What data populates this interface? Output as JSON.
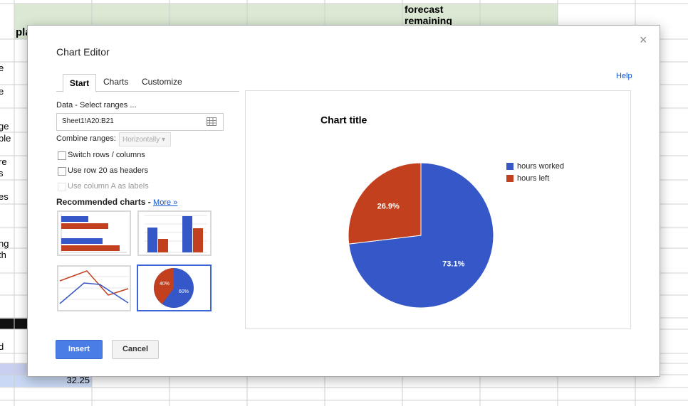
{
  "spreadsheet": {
    "header_cells": [
      "pla",
      "forecast remaining"
    ],
    "row_fragments": [
      "e",
      "e",
      "ge",
      "ble",
      "re",
      "s",
      "es",
      "ng",
      "th",
      "d"
    ],
    "cell_value": 32.25
  },
  "dialog": {
    "title": "Chart Editor",
    "close": "×",
    "tabs": [
      "Start",
      "Charts",
      "Customize"
    ],
    "help": "Help",
    "data_label": "Data - Select ranges ...",
    "range": "Sheet1!A20:B21",
    "combine_label": "Combine ranges:",
    "combine_value": "Horizontally",
    "options": [
      "Switch rows / columns",
      "Use row 20 as headers",
      "Use column A as labels"
    ],
    "recommended": "Recommended charts -",
    "more": "More »",
    "thumbnail_labels": [
      "40%",
      "60%"
    ],
    "insert": "Insert",
    "cancel": "Cancel"
  },
  "chart_data": {
    "type": "pie",
    "title": "Chart title",
    "categories": [
      "hours worked",
      "hours left"
    ],
    "values": [
      73.1,
      26.9
    ],
    "value_labels": [
      "73.1%",
      "26.9%"
    ],
    "colors": [
      "#3557c8",
      "#c3401f"
    ],
    "legend": "right"
  }
}
